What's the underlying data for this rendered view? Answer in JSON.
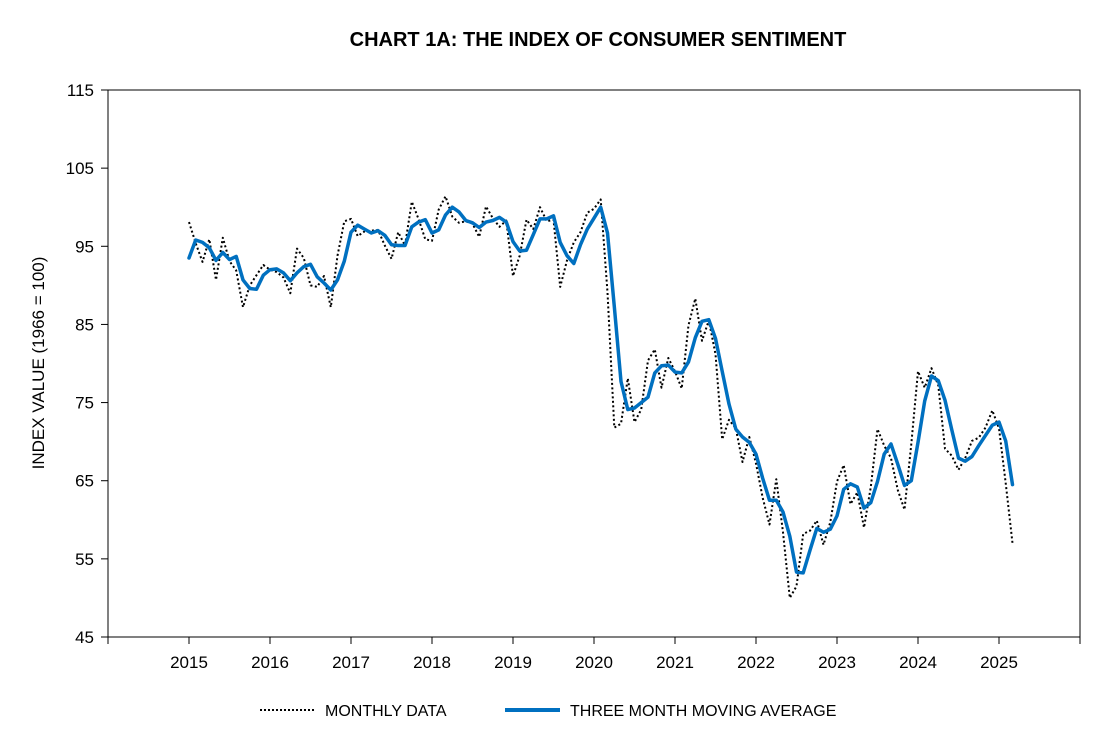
{
  "chart_data": {
    "type": "line",
    "title": "CHART 1A: THE INDEX OF CONSUMER SENTIMENT",
    "xlabel": "",
    "ylabel": "INDEX VALUE (1966 = 100)",
    "ylim": [
      45,
      115
    ],
    "yticks": [
      45,
      55,
      65,
      75,
      85,
      95,
      105,
      115
    ],
    "xlim": [
      2014,
      2026
    ],
    "xticks": [
      2015,
      2016,
      2017,
      2018,
      2019,
      2020,
      2021,
      2022,
      2023,
      2024,
      2025
    ],
    "legend_position": "bottom",
    "colors": {
      "monthly": "#000000",
      "moving_average": "#0070C0"
    },
    "series": [
      {
        "name": "MONTHLY DATA",
        "style": "dotted",
        "x": [
          2015.0,
          2015.083,
          2015.167,
          2015.25,
          2015.333,
          2015.417,
          2015.5,
          2015.583,
          2015.667,
          2015.75,
          2015.833,
          2015.917,
          2016.0,
          2016.083,
          2016.167,
          2016.25,
          2016.333,
          2016.417,
          2016.5,
          2016.583,
          2016.667,
          2016.75,
          2016.833,
          2016.917,
          2017.0,
          2017.083,
          2017.167,
          2017.25,
          2017.333,
          2017.417,
          2017.5,
          2017.583,
          2017.667,
          2017.75,
          2017.833,
          2017.917,
          2018.0,
          2018.083,
          2018.167,
          2018.25,
          2018.333,
          2018.417,
          2018.5,
          2018.583,
          2018.667,
          2018.75,
          2018.833,
          2018.917,
          2019.0,
          2019.083,
          2019.167,
          2019.25,
          2019.333,
          2019.417,
          2019.5,
          2019.583,
          2019.667,
          2019.75,
          2019.833,
          2019.917,
          2020.0,
          2020.083,
          2020.167,
          2020.25,
          2020.333,
          2020.417,
          2020.5,
          2020.583,
          2020.667,
          2020.75,
          2020.833,
          2020.917,
          2021.0,
          2021.083,
          2021.167,
          2021.25,
          2021.333,
          2021.417,
          2021.5,
          2021.583,
          2021.667,
          2021.75,
          2021.833,
          2021.917,
          2022.0,
          2022.083,
          2022.167,
          2022.25,
          2022.333,
          2022.417,
          2022.5,
          2022.583,
          2022.667,
          2022.75,
          2022.833,
          2022.917,
          2023.0,
          2023.083,
          2023.167,
          2023.25,
          2023.333,
          2023.417,
          2023.5,
          2023.583,
          2023.667,
          2023.75,
          2023.833,
          2023.917,
          2024.0,
          2024.083,
          2024.167,
          2024.25,
          2024.333,
          2024.417,
          2024.5,
          2024.583,
          2024.667,
          2024.75,
          2024.833,
          2024.917,
          2025.0,
          2025.083,
          2025.167
        ],
        "values": [
          98.1,
          95.4,
          93.0,
          95.9,
          90.7,
          96.1,
          93.1,
          91.9,
          87.2,
          90.0,
          91.3,
          92.6,
          92.0,
          91.7,
          91.0,
          89.0,
          94.7,
          93.5,
          90.0,
          89.8,
          91.2,
          87.2,
          93.8,
          98.2,
          98.5,
          96.3,
          96.9,
          97.0,
          97.1,
          95.1,
          93.4,
          96.8,
          95.1,
          100.7,
          98.5,
          95.9,
          95.7,
          99.7,
          101.4,
          98.8,
          98.0,
          98.2,
          97.9,
          96.2,
          100.1,
          98.6,
          97.5,
          98.3,
          91.2,
          93.8,
          98.4,
          97.2,
          100.0,
          98.2,
          98.4,
          89.8,
          93.2,
          95.5,
          96.8,
          99.3,
          99.8,
          101.0,
          89.1,
          71.8,
          72.3,
          78.1,
          72.5,
          74.1,
          80.4,
          81.8,
          76.9,
          80.7,
          79.0,
          76.8,
          84.9,
          88.3,
          82.9,
          85.5,
          81.2,
          70.3,
          72.8,
          71.7,
          67.4,
          70.6,
          67.2,
          62.8,
          59.4,
          65.2,
          58.4,
          50.0,
          51.5,
          58.2,
          58.6,
          59.9,
          56.8,
          59.7,
          64.9,
          67.0,
          62.0,
          63.5,
          59.0,
          64.2,
          71.6,
          69.5,
          67.9,
          63.8,
          61.3,
          69.7,
          79.0,
          76.9,
          79.4,
          77.2,
          69.1,
          68.2,
          66.4,
          67.9,
          70.1,
          70.5,
          71.8,
          74.0,
          71.7,
          64.7,
          57.0
        ]
      },
      {
        "name": "THREE MONTH MOVING AVERAGE",
        "style": "solid",
        "x": [
          2015.0,
          2015.083,
          2015.167,
          2015.25,
          2015.333,
          2015.417,
          2015.5,
          2015.583,
          2015.667,
          2015.75,
          2015.833,
          2015.917,
          2016.0,
          2016.083,
          2016.167,
          2016.25,
          2016.333,
          2016.417,
          2016.5,
          2016.583,
          2016.667,
          2016.75,
          2016.833,
          2016.917,
          2017.0,
          2017.083,
          2017.167,
          2017.25,
          2017.333,
          2017.417,
          2017.5,
          2017.583,
          2017.667,
          2017.75,
          2017.833,
          2017.917,
          2018.0,
          2018.083,
          2018.167,
          2018.25,
          2018.333,
          2018.417,
          2018.5,
          2018.583,
          2018.667,
          2018.75,
          2018.833,
          2018.917,
          2019.0,
          2019.083,
          2019.167,
          2019.25,
          2019.333,
          2019.417,
          2019.5,
          2019.583,
          2019.667,
          2019.75,
          2019.833,
          2019.917,
          2020.0,
          2020.083,
          2020.167,
          2020.25,
          2020.333,
          2020.417,
          2020.5,
          2020.583,
          2020.667,
          2020.75,
          2020.833,
          2020.917,
          2021.0,
          2021.083,
          2021.167,
          2021.25,
          2021.333,
          2021.417,
          2021.5,
          2021.583,
          2021.667,
          2021.75,
          2021.833,
          2021.917,
          2022.0,
          2022.083,
          2022.167,
          2022.25,
          2022.333,
          2022.417,
          2022.5,
          2022.583,
          2022.667,
          2022.75,
          2022.833,
          2022.917,
          2023.0,
          2023.083,
          2023.167,
          2023.25,
          2023.333,
          2023.417,
          2023.5,
          2023.583,
          2023.667,
          2023.75,
          2023.833,
          2023.917,
          2024.0,
          2024.083,
          2024.167,
          2024.25,
          2024.333,
          2024.417,
          2024.5,
          2024.583,
          2024.667,
          2024.75,
          2024.833,
          2024.917,
          2025.0,
          2025.083,
          2025.167
        ],
        "values": [
          93.5,
          95.8,
          95.5,
          94.8,
          93.2,
          94.2,
          93.3,
          93.7,
          90.7,
          89.6,
          89.5,
          91.3,
          92.0,
          92.1,
          91.6,
          90.6,
          91.6,
          92.4,
          92.7,
          91.1,
          90.3,
          89.4,
          90.7,
          93.1,
          96.8,
          97.7,
          97.2,
          96.7,
          97.0,
          96.4,
          95.2,
          95.1,
          95.1,
          97.5,
          98.1,
          98.4,
          96.7,
          97.1,
          99.0,
          100.0,
          99.4,
          98.3,
          98.0,
          97.4,
          98.1,
          98.3,
          98.7,
          98.1,
          95.6,
          94.4,
          94.5,
          96.5,
          98.5,
          98.5,
          98.9,
          95.5,
          93.8,
          92.8,
          95.2,
          97.2,
          98.6,
          100.0,
          96.7,
          87.3,
          77.7,
          74.1,
          74.3,
          75.0,
          75.7,
          78.8,
          79.7,
          79.8,
          78.9,
          78.8,
          80.2,
          83.3,
          85.4,
          85.6,
          83.2,
          79.0,
          74.8,
          71.6,
          70.6,
          69.9,
          68.4,
          65.3,
          62.5,
          62.5,
          61.0,
          57.9,
          53.3,
          53.2,
          56.1,
          58.9,
          58.4,
          58.8,
          60.5,
          63.9,
          64.6,
          64.2,
          61.5,
          62.2,
          64.9,
          68.4,
          69.7,
          67.1,
          64.4,
          65.0,
          69.9,
          75.2,
          78.4,
          77.8,
          75.3,
          71.5,
          67.9,
          67.5,
          68.1,
          69.5,
          70.8,
          72.1,
          72.5,
          70.1,
          64.5
        ]
      }
    ]
  }
}
